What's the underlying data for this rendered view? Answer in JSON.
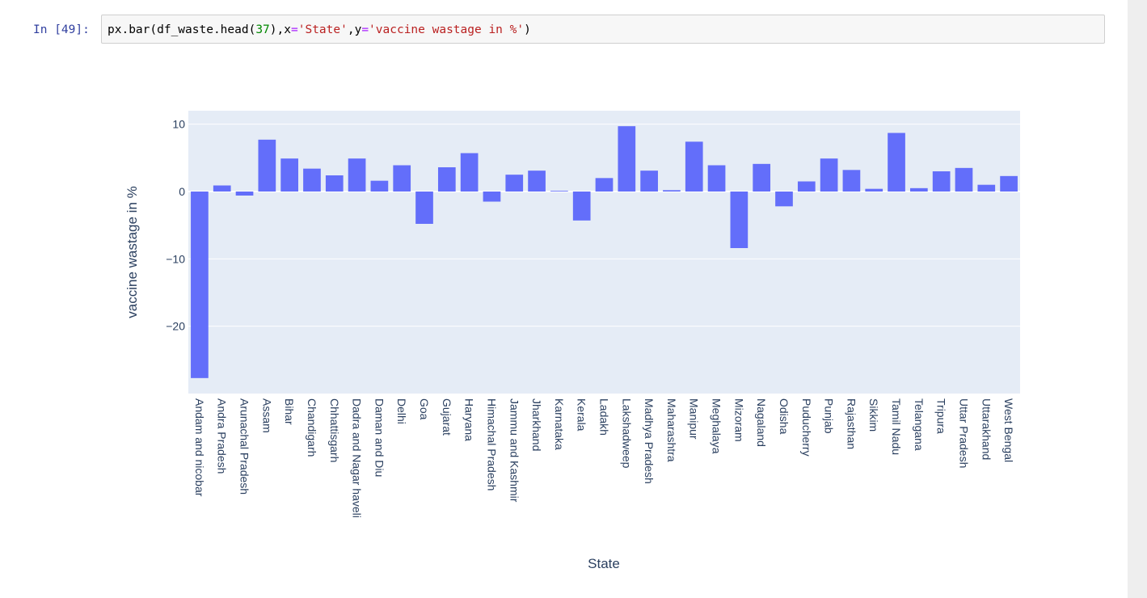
{
  "cell": {
    "prompt": "In [49]:",
    "code_tokens": [
      {
        "text": "px.bar(df_waste.head(",
        "cls": "tok-plain"
      },
      {
        "text": "37",
        "cls": "tok-num"
      },
      {
        "text": "),x",
        "cls": "tok-plain"
      },
      {
        "text": "=",
        "cls": "tok-op"
      },
      {
        "text": "'State'",
        "cls": "tok-str"
      },
      {
        "text": ",y",
        "cls": "tok-plain"
      },
      {
        "text": "=",
        "cls": "tok-op"
      },
      {
        "text": "'vaccine wastage in %'",
        "cls": "tok-str"
      },
      {
        "text": ")",
        "cls": "tok-plain"
      }
    ]
  },
  "colors": {
    "bar": "#636efa",
    "plot_bg": "#e5ecf6",
    "grid": "#ffffff",
    "text": "#2a3f5f"
  },
  "chart_data": {
    "type": "bar",
    "xlabel": "State",
    "ylabel": "vaccine wastage in %",
    "ylim": [
      -30,
      12
    ],
    "yticks": [
      10,
      0,
      -10,
      -20
    ],
    "ytick_labels": [
      "10",
      "0",
      "−10",
      "−20"
    ],
    "grid": true,
    "categories": [
      "Andam and nicobar",
      "Andra Pradesh",
      "Arunachal Pradesh",
      "Assam",
      "Bihar",
      "Chandigarh",
      "Chhattisgarh",
      "Dadra and Nagar haveli",
      "Daman and Diu",
      "Delhi",
      "Goa",
      "Gujarat",
      "Haryana",
      "Himachal Pradesh",
      "Jammu and Kashmir",
      "Jharkhand",
      "Karnataka",
      "Kerala",
      "Ladakh",
      "Lakshadweep",
      "Madhya Pradesh",
      "Maharashtra",
      "Manipur",
      "Meghalaya",
      "Mizoram",
      "Nagaland",
      "Odisha",
      "Puducherry",
      "Punjab",
      "Rajasthan",
      "Sikkim",
      "Tamil Nadu",
      "Telangana",
      "Tripura",
      "Uttar Pradesh",
      "Uttarakhand",
      "West Bengal"
    ],
    "values": [
      -27.7,
      0.9,
      -0.6,
      7.7,
      4.9,
      3.4,
      2.4,
      4.9,
      1.6,
      3.9,
      -4.8,
      3.6,
      5.7,
      -1.5,
      2.5,
      3.1,
      0.1,
      -4.3,
      2.0,
      9.7,
      3.1,
      0.2,
      7.4,
      3.9,
      -8.4,
      4.1,
      -2.2,
      1.5,
      4.9,
      3.2,
      0.4,
      8.7,
      0.5,
      3.0,
      3.5,
      1.0,
      2.3
    ]
  }
}
